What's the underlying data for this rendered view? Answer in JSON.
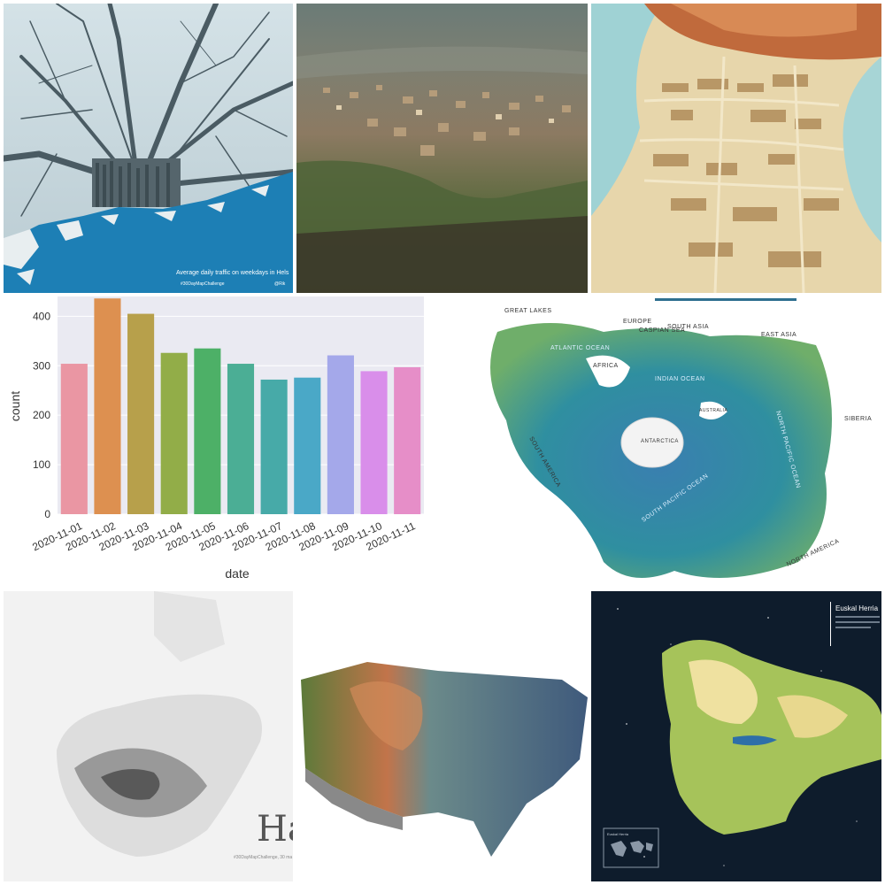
{
  "tile1": {
    "caption": "Average daily traffic on weekdays in Hels",
    "tag": "#30DayMapChallenge",
    "corner": "@Rik"
  },
  "tile5": {
    "labels": [
      "GREAT LAKES",
      "EUROPE",
      "CASPIAN SEA",
      "SOUTH ASIA",
      "EAST ASIA",
      "AFRICA",
      "ATLANTIC OCEAN",
      "INDIAN OCEAN",
      "AUSTRALIA",
      "ANTARCTICA",
      "SIBERIA",
      "SOUTH AMERICA",
      "NORTH PACIFIC OCEAN",
      "SOUTH PACIFIC OCEAN",
      "NORTH AMERICA"
    ]
  },
  "tile6": {
    "title": "Ha",
    "subtitle": "#30DayMapChallenge, 30 ma"
  },
  "tile8": {
    "title": "Euskal Herria",
    "inset": "Euskal Herria"
  },
  "chart_data": {
    "type": "bar",
    "categories": [
      "2020-11-01",
      "2020-11-02",
      "2020-11-03",
      "2020-11-04",
      "2020-11-05",
      "2020-11-06",
      "2020-11-07",
      "2020-11-08",
      "2020-11-09",
      "2020-11-10",
      "2020-11-11"
    ],
    "values": [
      304,
      436,
      405,
      326,
      335,
      304,
      272,
      276,
      321,
      289,
      297
    ],
    "colors": [
      "#ea96a3",
      "#dd9050",
      "#b7a04b",
      "#92ad48",
      "#4db067",
      "#4bae95",
      "#47aaa8",
      "#4aa8c7",
      "#a4a8ea",
      "#d98eea",
      "#e68ec8"
    ],
    "xlabel": "date",
    "ylabel": "count",
    "yticks": [
      0,
      100,
      200,
      300,
      400
    ],
    "ylim": [
      0,
      440
    ]
  }
}
